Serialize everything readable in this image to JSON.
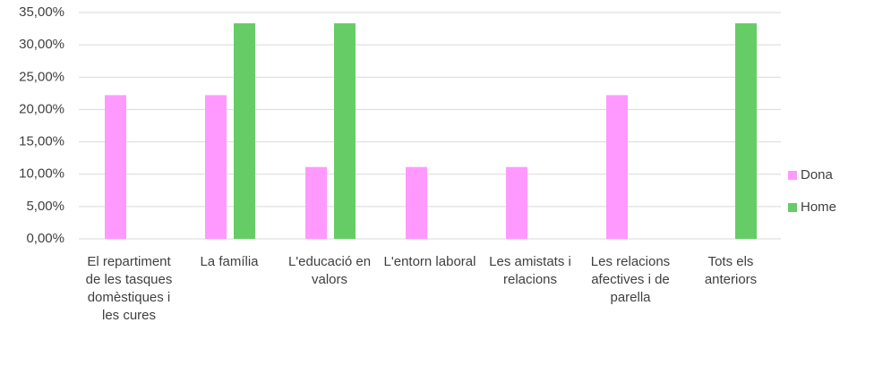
{
  "chart_data": {
    "type": "bar",
    "categories": [
      "El repartiment de les tasques domèstiques i les cures",
      "La família",
      "L'educació en valors",
      "L'entorn laboral",
      "Les amistats i relacions",
      "Les relacions afectives i de parella",
      "Tots els anteriors"
    ],
    "series": [
      {
        "name": "Dona",
        "color": "#ff99ff",
        "values": [
          22.22,
          22.22,
          11.11,
          11.11,
          11.11,
          22.22,
          0
        ]
      },
      {
        "name": "Home",
        "color": "#66cc66",
        "values": [
          0,
          33.33,
          33.33,
          0,
          0,
          0,
          33.33
        ]
      }
    ],
    "ylim": [
      0,
      35
    ],
    "yticks": [
      {
        "value": 0,
        "label": "0,00%"
      },
      {
        "value": 5,
        "label": "5,00%"
      },
      {
        "value": 10,
        "label": "10,00%"
      },
      {
        "value": 15,
        "label": "15,00%"
      },
      {
        "value": 20,
        "label": "20,00%"
      },
      {
        "value": 25,
        "label": "25,00%"
      },
      {
        "value": 30,
        "label": "30,00%"
      },
      {
        "value": 35,
        "label": "35,00%"
      }
    ],
    "grid": true,
    "legend": "right"
  }
}
